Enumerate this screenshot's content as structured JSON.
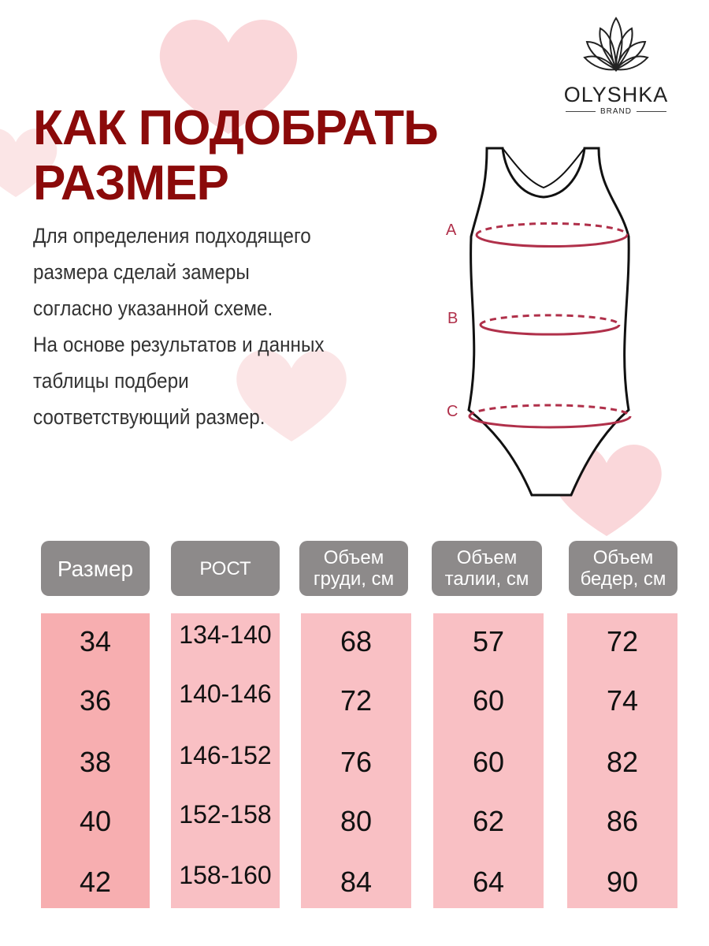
{
  "logo": {
    "name": "OLYSHKA",
    "tagline": "BRAND"
  },
  "title": {
    "line1": "КАК ПОДОБРАТЬ",
    "line2": "РАЗМЕР"
  },
  "description": [
    "Для определения подходящего",
    "размера сделай замеры",
    "согласно указанной схеме.",
    "На основе результатов и данных",
    "таблицы подбери",
    "соответствующий размер."
  ],
  "diagram": {
    "labels": [
      "A",
      "B",
      "C"
    ],
    "accent": "#b0304a"
  },
  "colors": {
    "title": "#8b0a0a",
    "header_bg": "#8d8a8a",
    "cell_bg": "#f9c0c4",
    "first_col_bg": "#f7aeb0"
  },
  "table": {
    "headers": [
      [
        "Размер"
      ],
      [
        "РОСТ"
      ],
      [
        "Объем",
        "груди, см"
      ],
      [
        "Объем",
        "талии, см"
      ],
      [
        "Объем",
        "бедер, см"
      ]
    ],
    "columns": [
      [
        "34",
        "36",
        "38",
        "40",
        "42"
      ],
      [
        "134-140",
        "140-146",
        "146-152",
        "152-158",
        "158-160"
      ],
      [
        "68",
        "72",
        "76",
        "80",
        "84"
      ],
      [
        "57",
        "60",
        "60",
        "62",
        "64"
      ],
      [
        "72",
        "74",
        "82",
        "86",
        "90"
      ]
    ]
  }
}
